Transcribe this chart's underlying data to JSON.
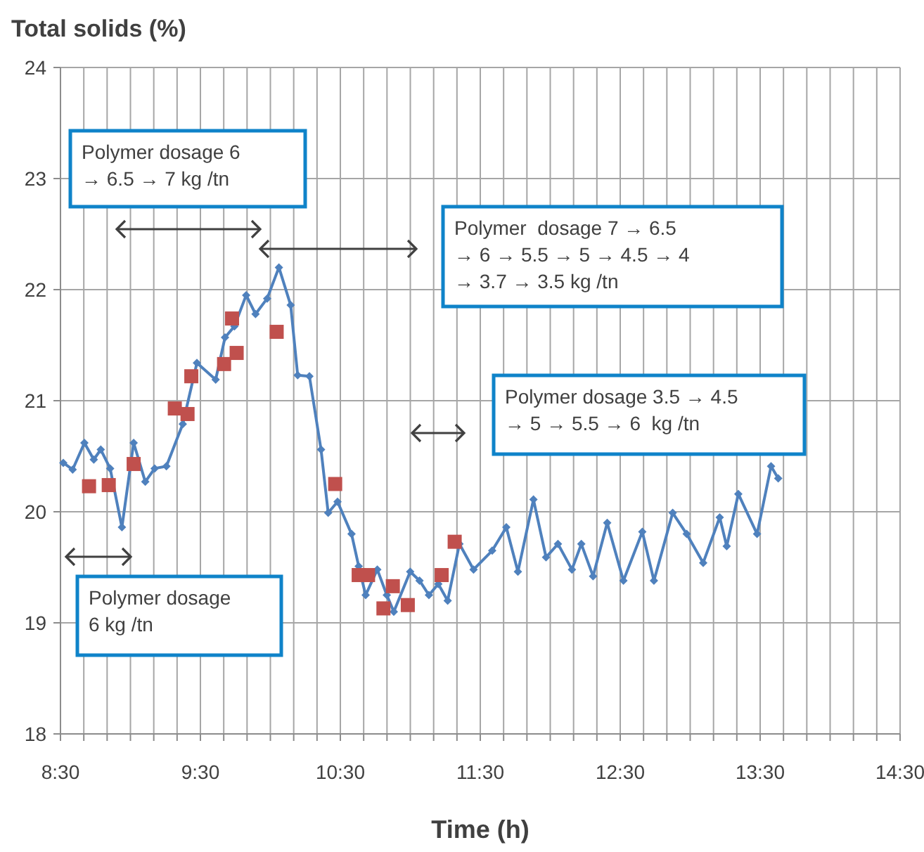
{
  "chart_data": {
    "type": "line",
    "ylabel": "Total solids (%)",
    "xlabel": "Time (h)",
    "xlim": [
      8.5,
      14.5
    ],
    "xticks": [
      {
        "value": 8.5,
        "label": "8:30"
      },
      {
        "value": 8.6667,
        "label": null
      },
      {
        "value": 8.8333,
        "label": null
      },
      {
        "value": 9,
        "label": null
      },
      {
        "value": 9.1667,
        "label": null
      },
      {
        "value": 9.3333,
        "label": null
      },
      {
        "value": 9.5,
        "label": "9:30"
      },
      {
        "value": 9.6667,
        "label": null
      },
      {
        "value": 9.8333,
        "label": null
      },
      {
        "value": 10,
        "label": null
      },
      {
        "value": 10.1667,
        "label": null
      },
      {
        "value": 10.3333,
        "label": null
      },
      {
        "value": 10.5,
        "label": "10:30"
      },
      {
        "value": 10.6667,
        "label": null
      },
      {
        "value": 10.8333,
        "label": null
      },
      {
        "value": 11,
        "label": null
      },
      {
        "value": 11.1667,
        "label": null
      },
      {
        "value": 11.3333,
        "label": null
      },
      {
        "value": 11.5,
        "label": "11:30"
      },
      {
        "value": 11.6667,
        "label": null
      },
      {
        "value": 11.8333,
        "label": null
      },
      {
        "value": 12,
        "label": null
      },
      {
        "value": 12.1667,
        "label": null
      },
      {
        "value": 12.3333,
        "label": null
      },
      {
        "value": 12.5,
        "label": "12:30"
      },
      {
        "value": 12.6667,
        "label": null
      },
      {
        "value": 12.8333,
        "label": null
      },
      {
        "value": 13,
        "label": null
      },
      {
        "value": 13.1667,
        "label": null
      },
      {
        "value": 13.3333,
        "label": null
      },
      {
        "value": 13.5,
        "label": "13:30"
      },
      {
        "value": 13.6667,
        "label": null
      },
      {
        "value": 13.8333,
        "label": null
      },
      {
        "value": 14,
        "label": null
      },
      {
        "value": 14.1667,
        "label": null
      },
      {
        "value": 14.3333,
        "label": null
      },
      {
        "value": 14.5,
        "label": "14:30"
      }
    ],
    "ylim": [
      18,
      24
    ],
    "yticks": [
      18,
      19,
      20,
      21,
      22,
      23,
      24
    ],
    "grid": true,
    "series": [
      {
        "type": "line",
        "color": "#4f81bd",
        "marker": "diamond",
        "x": [
          8.52,
          8.587,
          8.671,
          8.738,
          8.788,
          8.855,
          8.939,
          9.023,
          9.106,
          9.173,
          9.257,
          9.374,
          9.475,
          9.609,
          9.676,
          9.743,
          9.827,
          9.894,
          9.977,
          10.061,
          10.145,
          10.195,
          10.279,
          10.362,
          10.413,
          10.48,
          10.58,
          10.631,
          10.681,
          10.764,
          10.832,
          10.882,
          10.999,
          11.066,
          11.133,
          11.2,
          11.267,
          11.351,
          11.452,
          11.585,
          11.686,
          11.769,
          11.88,
          11.97,
          12.055,
          12.155,
          12.222,
          12.306,
          12.407,
          12.523,
          12.658,
          12.741,
          12.875,
          12.975,
          13.093,
          13.211,
          13.261,
          13.344,
          13.478,
          13.578,
          13.629
        ],
        "values": [
          20.44,
          20.38,
          20.62,
          20.47,
          20.56,
          20.39,
          19.86,
          20.62,
          20.27,
          20.39,
          20.41,
          20.79,
          21.34,
          21.19,
          21.57,
          21.67,
          21.95,
          21.78,
          21.92,
          22.2,
          21.86,
          21.23,
          21.22,
          20.56,
          19.99,
          20.09,
          19.8,
          19.51,
          19.25,
          19.48,
          19.25,
          19.1,
          19.46,
          19.38,
          19.25,
          19.35,
          19.2,
          19.71,
          19.48,
          19.65,
          19.86,
          19.46,
          20.11,
          19.59,
          19.71,
          19.48,
          19.71,
          19.42,
          19.9,
          19.38,
          19.82,
          19.38,
          19.99,
          19.8,
          19.54,
          19.95,
          19.69,
          20.16,
          19.8,
          20.41,
          20.3
        ]
      },
      {
        "type": "scatter",
        "color": "#c0504d",
        "marker": "square",
        "x": [
          8.704,
          8.845,
          9.023,
          9.317,
          9.408,
          9.435,
          9.669,
          9.726,
          9.759,
          10.045,
          10.463,
          10.631,
          10.698,
          10.808,
          10.875,
          10.982,
          11.224,
          11.317
        ],
        "values": [
          20.23,
          20.24,
          20.43,
          20.93,
          20.88,
          21.22,
          21.33,
          21.74,
          21.43,
          21.62,
          20.25,
          19.43,
          19.43,
          19.13,
          19.33,
          19.16,
          19.43,
          19.73
        ]
      }
    ],
    "annotations": [
      "Polymer dosage 6\n→ 6.5 → 7 kg /tn",
      "Polymer  dosage 7 → 6.5\n→ 6 → 5.5 → 5 → 4.5 → 4\n→ 3.7 → 3.5 kg /tn",
      "Polymer dosage 3.5 → 4.5\n→ 5 → 5.5 → 6  kg /tn",
      "Polymer dosage\n6 kg /tn"
    ]
  }
}
